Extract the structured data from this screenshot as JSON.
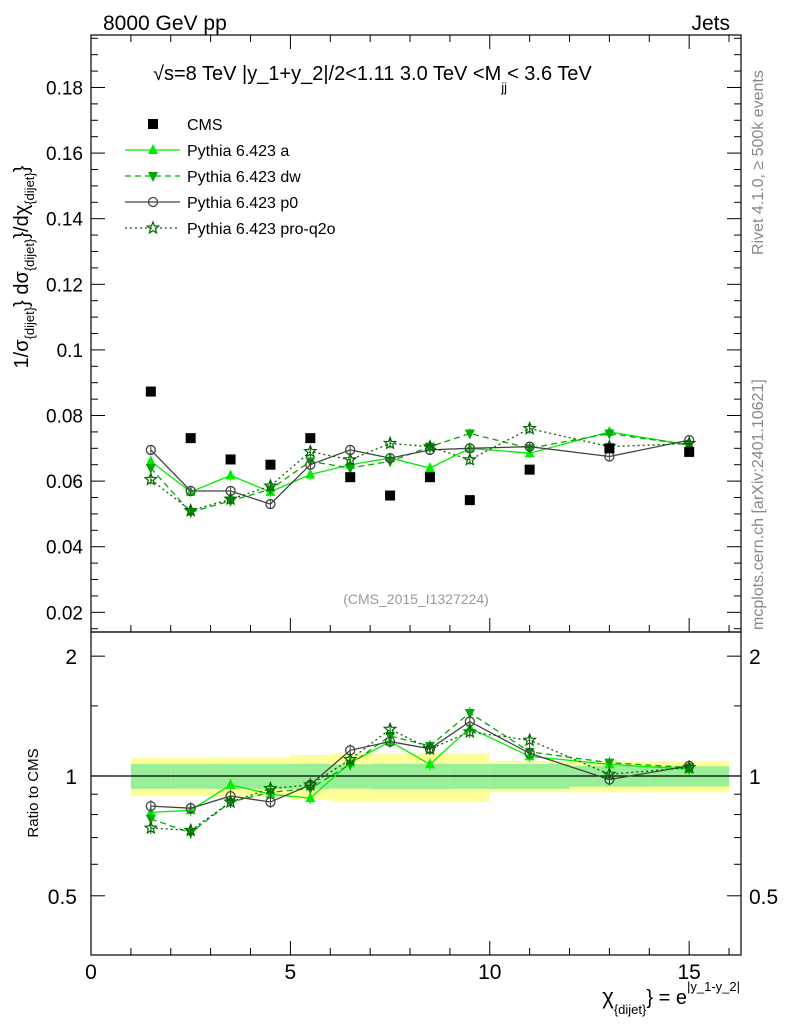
{
  "header": {
    "left": "8000 GeV pp",
    "right": "Jets"
  },
  "side": {
    "rivet": "Rivet 4.1.0, ≥ 500k events",
    "mcplots": "mcplots.cern.ch [arXiv:2401.10621]"
  },
  "chart_data": {
    "type": "line",
    "title": "√s=8 TeV |y_1+y_2|/2<1.11 3.0 TeV <M",
    "title_sub": "jj",
    "title_end": "< 3.6 TeV",
    "analysis": "(CMS_2015_I1327224)",
    "ylabel": "1/σ{dijet} dσ{dijet}/dχ{dijet}",
    "ylabel_parts": {
      "a": "1/σ",
      "a_sub": "{dijet}",
      "b": "} dσ",
      "b_sub": "{dijet}",
      "c": "}/dχ",
      "c_sub": "{dijet}",
      "d": "}"
    },
    "xlabel": "χ{dijet} = e^|y_1-y_2|",
    "xlabel_parts": {
      "chi": "χ",
      "chi_sub": "{dijet}",
      "eq": "} = e",
      "exp": "|y_1-y_2|"
    },
    "ratio_ylabel": "Ratio to CMS",
    "xlim": [
      0,
      16.3
    ],
    "ylim": [
      0.014,
      0.196
    ],
    "ratio_ylim": [
      0.355,
      2.3
    ],
    "xticks": [
      0,
      5,
      10,
      15
    ],
    "xtick_labels": [
      "0",
      "5",
      "10",
      "15"
    ],
    "yticks": [
      0.02,
      0.04,
      0.06,
      0.08,
      0.1,
      0.12,
      0.14,
      0.16,
      0.18
    ],
    "ytick_labels": [
      "0.02",
      "0.04",
      "0.06",
      "0.08",
      "0.1",
      "0.12",
      "0.14",
      "0.16",
      "0.18"
    ],
    "ratio_yticks": [
      0.5,
      1,
      2
    ],
    "ratio_ytick_labels": [
      "0.5",
      "1",
      "2"
    ],
    "bins": [
      [
        1,
        2
      ],
      [
        2,
        3
      ],
      [
        3,
        4
      ],
      [
        4,
        5
      ],
      [
        5,
        6
      ],
      [
        6,
        7
      ],
      [
        7,
        8
      ],
      [
        8,
        9
      ],
      [
        9,
        10
      ],
      [
        10,
        12
      ],
      [
        12,
        14
      ],
      [
        14,
        16
      ]
    ],
    "x": [
      1.5,
      2.5,
      3.5,
      4.5,
      5.5,
      6.5,
      7.5,
      8.5,
      9.5,
      11,
      13,
      15
    ],
    "data": {
      "name": "CMS",
      "values": [
        0.0873,
        0.0731,
        0.0666,
        0.065,
        0.0731,
        0.0612,
        0.0556,
        0.0612,
        0.0542,
        0.0635,
        0.07,
        0.0689
      ],
      "band_inner": [
        0.072,
        0.071,
        0.072,
        0.072,
        0.073,
        0.07,
        0.073,
        0.073,
        0.072,
        0.072,
        0.06,
        0.058
      ],
      "band_outer": [
        0.11,
        0.11,
        0.112,
        0.112,
        0.128,
        0.137,
        0.14,
        0.14,
        0.14,
        0.09,
        0.09,
        0.09
      ]
    },
    "series": [
      {
        "name": "Pythia 6.423 a",
        "color": "#00ee00",
        "dash": "",
        "marker": "triangle-up",
        "values": [
          0.066,
          0.0567,
          0.0617,
          0.0567,
          0.062,
          0.065,
          0.067,
          0.064,
          0.07,
          0.0685,
          0.075,
          0.071
        ],
        "ratio": [
          0.81,
          0.82,
          0.95,
          0.9,
          0.88,
          1.08,
          1.22,
          1.07,
          1.32,
          1.12,
          1.07,
          1.04
        ]
      },
      {
        "name": "Pythia 6.423 dw",
        "color": "#00aa00",
        "dash": "6,4",
        "marker": "triangle-down",
        "values": [
          0.064,
          0.0505,
          0.054,
          0.0575,
          0.066,
          0.064,
          0.066,
          0.0705,
          0.0745,
          0.07,
          0.0745,
          0.071
        ],
        "ratio": [
          0.78,
          0.72,
          0.86,
          0.91,
          0.93,
          1.07,
          1.26,
          1.19,
          1.44,
          1.15,
          1.08,
          1.05
        ]
      },
      {
        "name": "Pythia 6.423 p0",
        "color": "#444444",
        "dash": "",
        "marker": "circle",
        "values": [
          0.0695,
          0.057,
          0.057,
          0.053,
          0.065,
          0.0695,
          0.067,
          0.0695,
          0.07,
          0.0705,
          0.0675,
          0.0725
        ],
        "ratio": [
          0.84,
          0.83,
          0.89,
          0.86,
          0.95,
          1.16,
          1.22,
          1.17,
          1.37,
          1.14,
          0.98,
          1.06
        ]
      },
      {
        "name": "Pythia 6.423 pro-q2o",
        "color": "#006600",
        "dash": "2,3",
        "marker": "star",
        "values": [
          0.0605,
          0.051,
          0.0545,
          0.0585,
          0.069,
          0.0665,
          0.0715,
          0.0705,
          0.0665,
          0.076,
          0.0705,
          0.0715
        ],
        "ratio": [
          0.74,
          0.73,
          0.86,
          0.93,
          0.95,
          1.1,
          1.31,
          1.17,
          1.29,
          1.23,
          1.01,
          1.05
        ]
      }
    ],
    "legend_position": "top-left"
  }
}
